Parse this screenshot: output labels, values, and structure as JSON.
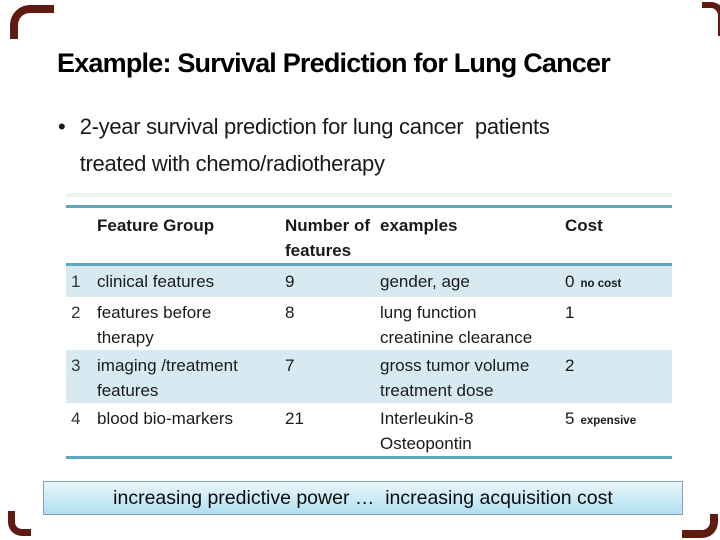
{
  "slide": {
    "title": "Example: Survival Prediction for Lung Cancer",
    "bullet": {
      "marker": "•",
      "line1": "2-year survival prediction for lung cancer  patients",
      "line2": "treated with chemo/radiotherapy"
    }
  },
  "table": {
    "headers": {
      "feature_group": "Feature Group",
      "num_features": "Number of\nfeatures",
      "examples": "examples",
      "cost": "Cost"
    },
    "rows": [
      {
        "num": "1",
        "feature_group": "clinical features",
        "num_features": "9",
        "examples": "gender, age",
        "cost": "0",
        "cost_note": "no cost"
      },
      {
        "num": "2",
        "feature_group": "features before\ntherapy",
        "num_features": "8",
        "examples": "lung function\ncreatinine clearance",
        "cost": "1",
        "cost_note": ""
      },
      {
        "num": "3",
        "feature_group": "imaging /treatment\nfeatures",
        "num_features": "7",
        "examples": "gross tumor volume\ntreatment dose",
        "cost": "2",
        "cost_note": ""
      },
      {
        "num": "4",
        "feature_group": "blood bio-markers",
        "num_features": "21",
        "examples": "Interleukin-8\nOsteopontin",
        "cost": "5",
        "cost_note": "expensive"
      }
    ]
  },
  "footer_box": {
    "text": "increasing predictive power …  increasing acquisition cost"
  },
  "colors": {
    "rule-teal": "#5ea7bc",
    "row-stripe": "#d8eaf1",
    "box-border": "#85a0b0",
    "box-grad-top": "#e9f7fd",
    "box-grad-bottom": "#b0dff0",
    "corner-accent": "#5f1b10",
    "text": "#1a1a1a"
  }
}
